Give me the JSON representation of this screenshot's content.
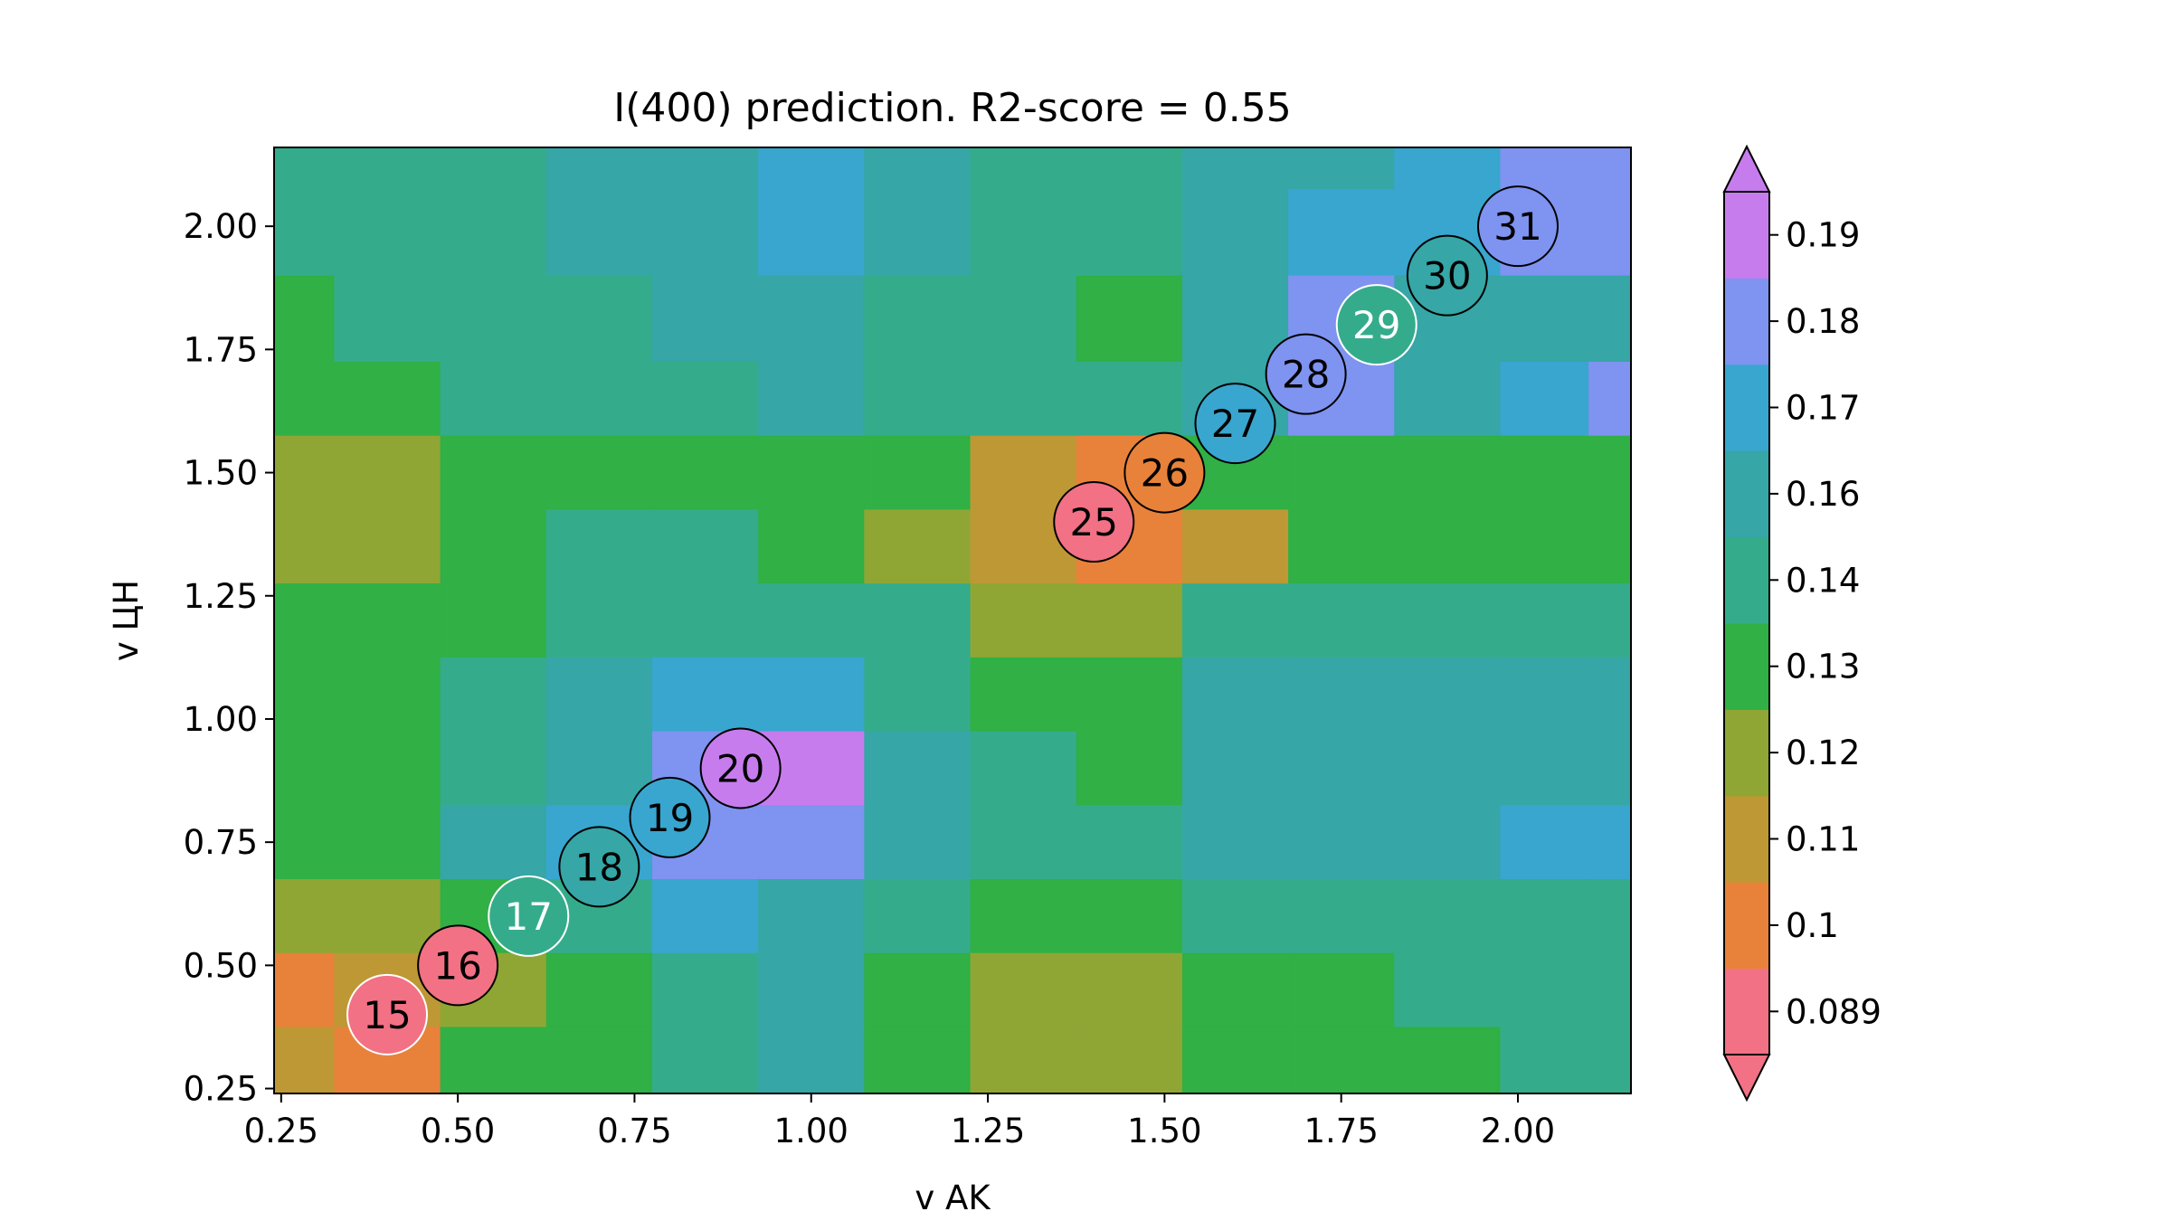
{
  "chart_data": {
    "type": "heatmap",
    "title": "I(400) prediction. R2-score = 0.55",
    "xlabel": "v AK",
    "ylabel": "v ЦН",
    "xlim": [
      0.24,
      2.16
    ],
    "ylim": [
      0.24,
      2.16
    ],
    "x_ticks": [
      0.25,
      0.5,
      0.75,
      1.0,
      1.25,
      1.5,
      1.75,
      2.0
    ],
    "x_tick_labels": [
      "0.25",
      "0.50",
      "0.75",
      "1.00",
      "1.25",
      "1.50",
      "1.75",
      "2.00"
    ],
    "y_ticks": [
      0.25,
      0.5,
      0.75,
      1.0,
      1.25,
      1.5,
      1.75,
      2.0
    ],
    "y_tick_labels": [
      "0.25",
      "0.50",
      "0.75",
      "1.00",
      "1.25",
      "1.50",
      "1.75",
      "2.00"
    ],
    "colorbar": {
      "labels": [
        "0.089",
        "0.1",
        "0.11",
        "0.12",
        "0.13",
        "0.14",
        "0.16",
        "0.17",
        "0.18",
        "0.19"
      ],
      "colors": [
        "#f27184",
        "#e8823a",
        "#be9834",
        "#8fa635",
        "#30b045",
        "#34ac8c",
        "#36a6a6",
        "#38a6cf",
        "#7f93f0",
        "#c77ced"
      ],
      "extend": "both"
    },
    "field": {
      "x": [
        0.25,
        0.4,
        0.55,
        0.7,
        0.85,
        1.0,
        1.15,
        1.3,
        1.45,
        1.6,
        1.75,
        1.9,
        2.05,
        2.15
      ],
      "y": [
        2.15,
        2.0,
        1.8,
        1.65,
        1.5,
        1.35,
        1.2,
        1.05,
        0.9,
        0.75,
        0.6,
        0.45,
        0.3
      ],
      "levels": [
        [
          5,
          5,
          5,
          6,
          6,
          7,
          6,
          5,
          5,
          6,
          6,
          7,
          8,
          8
        ],
        [
          5,
          5,
          5,
          6,
          6,
          7,
          6,
          5,
          5,
          6,
          7,
          7,
          8,
          8
        ],
        [
          4,
          5,
          5,
          5,
          6,
          6,
          5,
          5,
          4,
          6,
          8,
          6,
          6,
          6
        ],
        [
          4,
          4,
          5,
          5,
          5,
          6,
          5,
          5,
          5,
          6,
          8,
          6,
          7,
          8
        ],
        [
          3,
          3,
          4,
          4,
          4,
          4,
          4,
          2,
          1,
          4,
          4,
          4,
          4,
          4
        ],
        [
          3,
          3,
          4,
          5,
          5,
          4,
          3,
          2,
          1,
          2,
          4,
          4,
          4,
          4
        ],
        [
          4,
          4,
          4,
          5,
          5,
          5,
          5,
          3,
          3,
          5,
          5,
          5,
          5,
          5
        ],
        [
          4,
          4,
          5,
          6,
          7,
          7,
          5,
          4,
          4,
          6,
          6,
          6,
          6,
          6
        ],
        [
          4,
          4,
          5,
          6,
          8,
          9,
          6,
          5,
          4,
          6,
          6,
          6,
          6,
          6
        ],
        [
          4,
          4,
          6,
          7,
          8,
          8,
          6,
          5,
          5,
          6,
          6,
          6,
          7,
          7
        ],
        [
          3,
          3,
          4,
          5,
          7,
          6,
          5,
          4,
          4,
          5,
          5,
          5,
          5,
          5
        ],
        [
          1,
          2,
          3,
          4,
          5,
          6,
          4,
          3,
          3,
          4,
          4,
          5,
          5,
          5
        ],
        [
          2,
          1,
          4,
          4,
          5,
          6,
          4,
          3,
          3,
          4,
          4,
          4,
          5,
          5
        ]
      ]
    },
    "points": [
      {
        "label": "15",
        "x": 0.4,
        "y": 0.4,
        "level": 0,
        "text_color": "#000000",
        "edge_color": "#ffffff"
      },
      {
        "label": "16",
        "x": 0.5,
        "y": 0.5,
        "level": 0,
        "text_color": "#000000",
        "edge_color": "#000000"
      },
      {
        "label": "17",
        "x": 0.6,
        "y": 0.6,
        "level": 5,
        "text_color": "#ffffff",
        "edge_color": "#ffffff"
      },
      {
        "label": "18",
        "x": 0.7,
        "y": 0.7,
        "level": 6,
        "text_color": "#000000",
        "edge_color": "#000000"
      },
      {
        "label": "19",
        "x": 0.8,
        "y": 0.8,
        "level": 7,
        "text_color": "#000000",
        "edge_color": "#000000"
      },
      {
        "label": "20",
        "x": 0.9,
        "y": 0.9,
        "level": 9,
        "text_color": "#000000",
        "edge_color": "#000000"
      },
      {
        "label": "25",
        "x": 1.4,
        "y": 1.4,
        "level": 0,
        "text_color": "#000000",
        "edge_color": "#000000"
      },
      {
        "label": "26",
        "x": 1.5,
        "y": 1.5,
        "level": 1,
        "text_color": "#000000",
        "edge_color": "#000000"
      },
      {
        "label": "27",
        "x": 1.6,
        "y": 1.6,
        "level": 7,
        "text_color": "#000000",
        "edge_color": "#000000"
      },
      {
        "label": "28",
        "x": 1.7,
        "y": 1.7,
        "level": 8,
        "text_color": "#000000",
        "edge_color": "#000000"
      },
      {
        "label": "29",
        "x": 1.8,
        "y": 1.8,
        "level": 5,
        "text_color": "#ffffff",
        "edge_color": "#ffffff"
      },
      {
        "label": "30",
        "x": 1.9,
        "y": 1.9,
        "level": 6,
        "text_color": "#000000",
        "edge_color": "#000000"
      },
      {
        "label": "31",
        "x": 2.0,
        "y": 2.0,
        "level": 8,
        "text_color": "#000000",
        "edge_color": "#000000"
      }
    ]
  }
}
